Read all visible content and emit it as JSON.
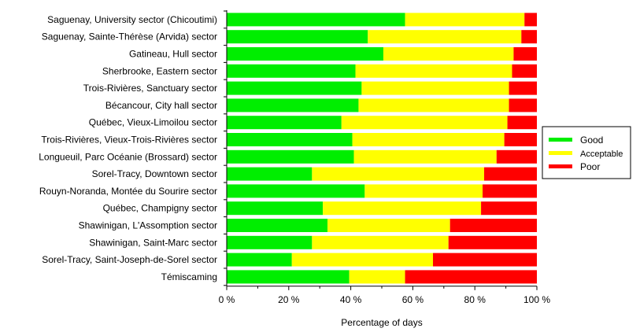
{
  "chart_data": {
    "type": "bar",
    "orientation": "horizontal",
    "stacked": true,
    "categories": [
      "Saguenay, University sector (Chicoutimi)",
      "Saguenay, Sainte-Thérèse (Arvida) sector",
      "Gatineau, Hull sector",
      "Sherbrooke, Eastern sector",
      "Trois-Rivières, Sanctuary sector",
      "Bécancour, City hall sector",
      "Québec, Vieux-Limoilou sector",
      "Trois-Rivières, Vieux-Trois-Rivières sector",
      "Longueuil, Parc Océanie (Brossard) sector",
      "Sorel-Tracy, Downtown sector",
      "Rouyn-Noranda, Montée du Sourire sector",
      "Québec, Champigny sector",
      "Shawinigan, L'Assomption sector",
      "Shawinigan, Saint-Marc sector",
      "Sorel-Tracy, Saint-Joseph-de-Sorel sector",
      "Témiscaming"
    ],
    "series": [
      {
        "name": "Good",
        "color": "#00ee00",
        "values": [
          57.5,
          45.5,
          50.5,
          41.5,
          43.5,
          42.5,
          37.0,
          40.5,
          41.0,
          27.5,
          44.5,
          31.0,
          32.5,
          27.5,
          21.0,
          39.5
        ]
      },
      {
        "name": "Acceptable",
        "color": "#ffff00",
        "values": [
          38.5,
          49.5,
          42.0,
          50.5,
          47.5,
          48.5,
          53.5,
          49.0,
          46.0,
          55.5,
          38.0,
          51.0,
          39.5,
          44.0,
          45.5,
          18.0
        ]
      },
      {
        "name": "Poor",
        "color": "#ff0000",
        "values": [
          4.0,
          5.0,
          7.5,
          8.0,
          9.0,
          9.0,
          9.5,
          10.5,
          13.0,
          17.0,
          17.5,
          18.0,
          28.0,
          28.5,
          33.5,
          42.5
        ]
      }
    ],
    "xlabel": "Percentage of days",
    "ylabel": "",
    "xlim": [
      0,
      100
    ],
    "xticks": [
      "0 %",
      "20 %",
      "40 %",
      "60 %",
      "80 %",
      "100 %"
    ],
    "grid": false,
    "legend_position": "right"
  }
}
